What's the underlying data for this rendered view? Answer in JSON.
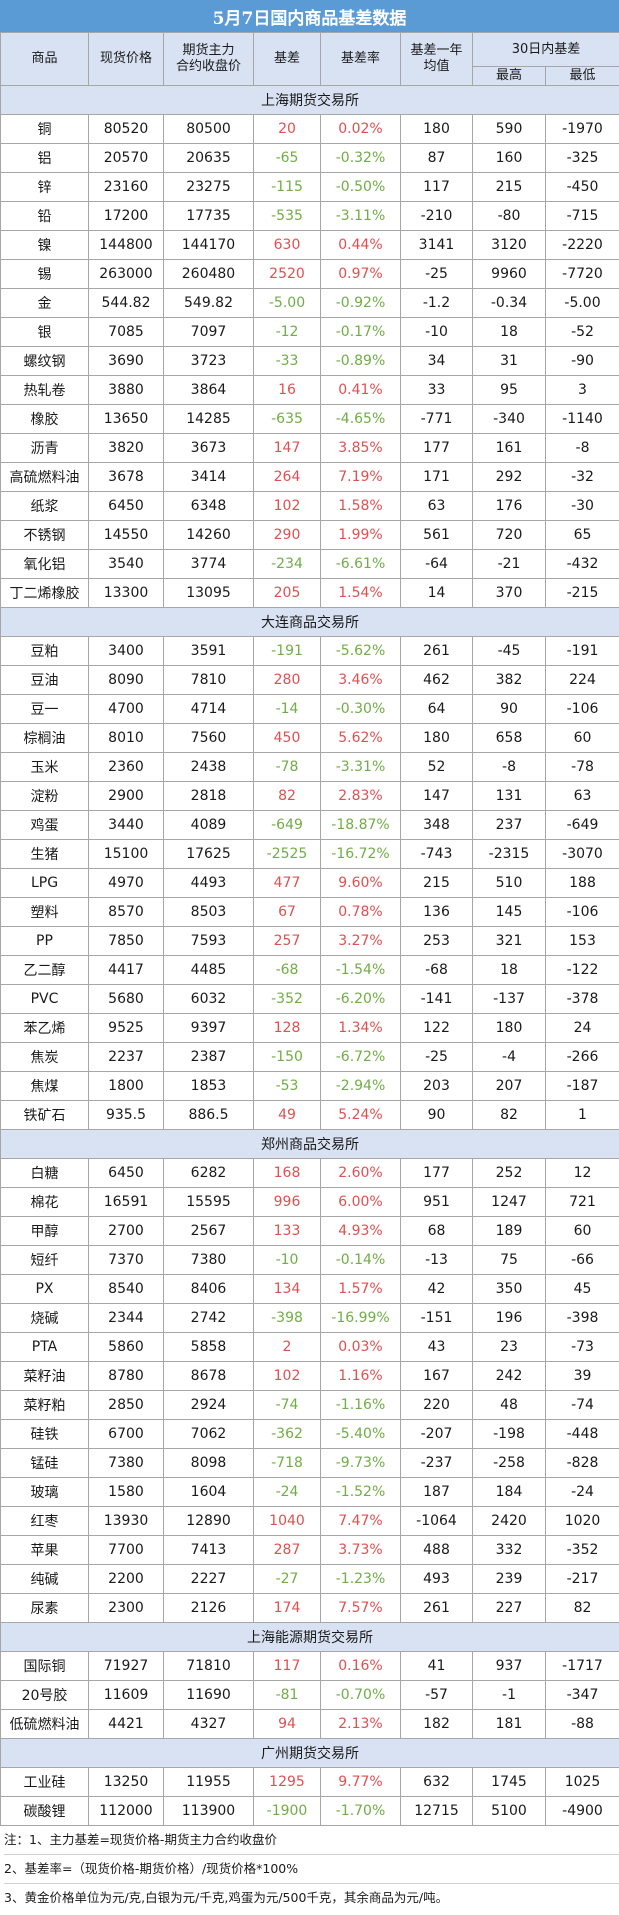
{
  "title": "5月7日国内商品基差数据",
  "headers": {
    "name": "商品",
    "spot": "现货价格",
    "futures_line1": "期货主力",
    "futures_line2": "合约收盘价",
    "basis": "基差",
    "basis_rate": "基差率",
    "avg_line1": "基差一年",
    "avg_line2": "均值",
    "range30": "30日内基差",
    "high": "最高",
    "low": "最低"
  },
  "colors": {
    "positive": "#e05050",
    "negative": "#70ad47",
    "header_bg": "#d9e2f3",
    "title_bg": "#5b9bd5"
  },
  "sections": [
    {
      "name": "上海期货交易所",
      "rows": [
        [
          "铜",
          "80520",
          "80500",
          "20",
          "0.02%",
          "180",
          "590",
          "-1970"
        ],
        [
          "铝",
          "20570",
          "20635",
          "-65",
          "-0.32%",
          "87",
          "160",
          "-325"
        ],
        [
          "锌",
          "23160",
          "23275",
          "-115",
          "-0.50%",
          "117",
          "215",
          "-450"
        ],
        [
          "铅",
          "17200",
          "17735",
          "-535",
          "-3.11%",
          "-210",
          "-80",
          "-715"
        ],
        [
          "镍",
          "144800",
          "144170",
          "630",
          "0.44%",
          "3141",
          "3120",
          "-2220"
        ],
        [
          "锡",
          "263000",
          "260480",
          "2520",
          "0.97%",
          "-25",
          "9960",
          "-7720"
        ],
        [
          "金",
          "544.82",
          "549.82",
          "-5.00",
          "-0.92%",
          "-1.2",
          "-0.34",
          "-5.00"
        ],
        [
          "银",
          "7085",
          "7097",
          "-12",
          "-0.17%",
          "-10",
          "18",
          "-52"
        ],
        [
          "螺纹钢",
          "3690",
          "3723",
          "-33",
          "-0.89%",
          "34",
          "31",
          "-90"
        ],
        [
          "热轧卷",
          "3880",
          "3864",
          "16",
          "0.41%",
          "33",
          "95",
          "3"
        ],
        [
          "橡胶",
          "13650",
          "14285",
          "-635",
          "-4.65%",
          "-771",
          "-340",
          "-1140"
        ],
        [
          "沥青",
          "3820",
          "3673",
          "147",
          "3.85%",
          "177",
          "161",
          "-8"
        ],
        [
          "高硫燃料油",
          "3678",
          "3414",
          "264",
          "7.19%",
          "171",
          "292",
          "-32"
        ],
        [
          "纸浆",
          "6450",
          "6348",
          "102",
          "1.58%",
          "63",
          "176",
          "-30"
        ],
        [
          "不锈钢",
          "14550",
          "14260",
          "290",
          "1.99%",
          "561",
          "720",
          "65"
        ],
        [
          "氧化铝",
          "3540",
          "3774",
          "-234",
          "-6.61%",
          "-64",
          "-21",
          "-432"
        ],
        [
          "丁二烯橡胶",
          "13300",
          "13095",
          "205",
          "1.54%",
          "14",
          "370",
          "-215"
        ]
      ]
    },
    {
      "name": "大连商品交易所",
      "rows": [
        [
          "豆粕",
          "3400",
          "3591",
          "-191",
          "-5.62%",
          "261",
          "-45",
          "-191"
        ],
        [
          "豆油",
          "8090",
          "7810",
          "280",
          "3.46%",
          "462",
          "382",
          "224"
        ],
        [
          "豆一",
          "4700",
          "4714",
          "-14",
          "-0.30%",
          "64",
          "90",
          "-106"
        ],
        [
          "棕榈油",
          "8010",
          "7560",
          "450",
          "5.62%",
          "180",
          "658",
          "60"
        ],
        [
          "玉米",
          "2360",
          "2438",
          "-78",
          "-3.31%",
          "52",
          "-8",
          "-78"
        ],
        [
          "淀粉",
          "2900",
          "2818",
          "82",
          "2.83%",
          "147",
          "131",
          "63"
        ],
        [
          "鸡蛋",
          "3440",
          "4089",
          "-649",
          "-18.87%",
          "348",
          "237",
          "-649"
        ],
        [
          "生猪",
          "15100",
          "17625",
          "-2525",
          "-16.72%",
          "-743",
          "-2315",
          "-3070"
        ],
        [
          "LPG",
          "4970",
          "4493",
          "477",
          "9.60%",
          "215",
          "510",
          "188"
        ],
        [
          "塑料",
          "8570",
          "8503",
          "67",
          "0.78%",
          "136",
          "145",
          "-106"
        ],
        [
          "PP",
          "7850",
          "7593",
          "257",
          "3.27%",
          "253",
          "321",
          "153"
        ],
        [
          "乙二醇",
          "4417",
          "4485",
          "-68",
          "-1.54%",
          "-68",
          "18",
          "-122"
        ],
        [
          "PVC",
          "5680",
          "6032",
          "-352",
          "-6.20%",
          "-141",
          "-137",
          "-378"
        ],
        [
          "苯乙烯",
          "9525",
          "9397",
          "128",
          "1.34%",
          "122",
          "180",
          "24"
        ],
        [
          "焦炭",
          "2237",
          "2387",
          "-150",
          "-6.72%",
          "-25",
          "-4",
          "-266"
        ],
        [
          "焦煤",
          "1800",
          "1853",
          "-53",
          "-2.94%",
          "203",
          "207",
          "-187"
        ],
        [
          "铁矿石",
          "935.5",
          "886.5",
          "49",
          "5.24%",
          "90",
          "82",
          "1"
        ]
      ]
    },
    {
      "name": "郑州商品交易所",
      "rows": [
        [
          "白糖",
          "6450",
          "6282",
          "168",
          "2.60%",
          "177",
          "252",
          "12"
        ],
        [
          "棉花",
          "16591",
          "15595",
          "996",
          "6.00%",
          "951",
          "1247",
          "721"
        ],
        [
          "甲醇",
          "2700",
          "2567",
          "133",
          "4.93%",
          "68",
          "189",
          "60"
        ],
        [
          "短纤",
          "7370",
          "7380",
          "-10",
          "-0.14%",
          "-13",
          "75",
          "-66"
        ],
        [
          "PX",
          "8540",
          "8406",
          "134",
          "1.57%",
          "42",
          "350",
          "45"
        ],
        [
          "烧碱",
          "2344",
          "2742",
          "-398",
          "-16.99%",
          "-151",
          "196",
          "-398"
        ],
        [
          "PTA",
          "5860",
          "5858",
          "2",
          "0.03%",
          "43",
          "23",
          "-73"
        ],
        [
          "菜籽油",
          "8780",
          "8678",
          "102",
          "1.16%",
          "167",
          "242",
          "39"
        ],
        [
          "菜籽粕",
          "2850",
          "2924",
          "-74",
          "-1.16%",
          "220",
          "48",
          "-74"
        ],
        [
          "硅铁",
          "6700",
          "7062",
          "-362",
          "-5.40%",
          "-207",
          "-198",
          "-448"
        ],
        [
          "锰硅",
          "7380",
          "8098",
          "-718",
          "-9.73%",
          "-237",
          "-258",
          "-828"
        ],
        [
          "玻璃",
          "1580",
          "1604",
          "-24",
          "-1.52%",
          "187",
          "184",
          "-24"
        ],
        [
          "红枣",
          "13930",
          "12890",
          "1040",
          "7.47%",
          "-1064",
          "2420",
          "1020"
        ],
        [
          "苹果",
          "7700",
          "7413",
          "287",
          "3.73%",
          "488",
          "332",
          "-352"
        ],
        [
          "纯碱",
          "2200",
          "2227",
          "-27",
          "-1.23%",
          "493",
          "239",
          "-217"
        ],
        [
          "尿素",
          "2300",
          "2126",
          "174",
          "7.57%",
          "261",
          "227",
          "82"
        ]
      ]
    },
    {
      "name": "上海能源期货交易所",
      "rows": [
        [
          "国际铜",
          "71927",
          "71810",
          "117",
          "0.16%",
          "41",
          "937",
          "-1717"
        ],
        [
          "20号胶",
          "11609",
          "11690",
          "-81",
          "-0.70%",
          "-57",
          "-1",
          "-347"
        ],
        [
          "低硫燃料油",
          "4421",
          "4327",
          "94",
          "2.13%",
          "182",
          "181",
          "-88"
        ]
      ]
    },
    {
      "name": "广州期货交易所",
      "rows": [
        [
          "工业硅",
          "13250",
          "11955",
          "1295",
          "9.77%",
          "632",
          "1745",
          "1025"
        ],
        [
          "碳酸锂",
          "112000",
          "113900",
          "-1900",
          "-1.70%",
          "12715",
          "5100",
          "-4900"
        ]
      ]
    }
  ],
  "notes": [
    "注：1、主力基差=现货价格-期货主力合约收盘价",
    "2、基差率=（现货价格-期货价格）/现货价格*100%",
    "3、黄金价格单位为元/克,白银为元/千克,鸡蛋为元/500千克，其余商品为元/吨。"
  ]
}
